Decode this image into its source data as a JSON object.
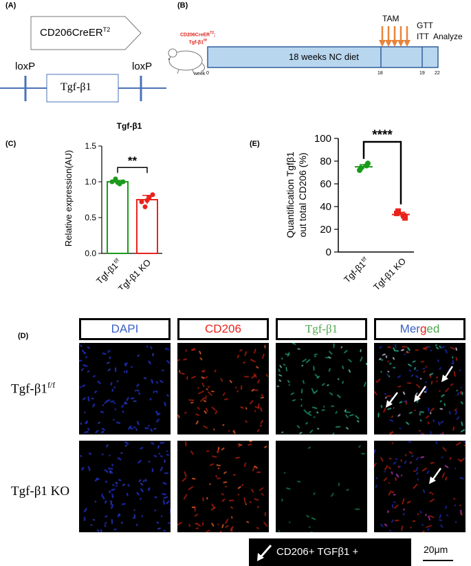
{
  "panels": {
    "A": "(A)",
    "B": "(B)",
    "C": "(C)",
    "D": "(D)",
    "E": "(E)"
  },
  "panelA": {
    "construct_label": "CD206CreER",
    "construct_sup": "T2",
    "loxp_left": "loxP",
    "loxp_right": "loxP",
    "gene": "Tgf-β1"
  },
  "panelB": {
    "mouse_label_line1": "CD206CreER",
    "mouse_label_sup": "T2",
    "mouse_label_line2": "Tgf-β1",
    "mouse_label_sup2": "f/f",
    "week": "week",
    "diet": "18 weeks NC diet",
    "tam": "TAM",
    "gtt": "GTT",
    "itt": "ITT",
    "analyze": "Analyze",
    "ticks": [
      "0",
      "18",
      "19",
      "22"
    ],
    "colors": {
      "bar": "#b9d6ef",
      "arrow": "#e8843a",
      "mouse_label": "#e0231c"
    }
  },
  "panelC": {
    "chart_data": {
      "type": "bar",
      "title": "Tgf-β1",
      "ylabel": "Relative expression(AU)",
      "categories": [
        "Tgf-β1f/f",
        "Tgf-β1 KO"
      ],
      "category_main": [
        "Tgf-β1",
        "Tgf-β1 KO"
      ],
      "category_sup": [
        "f/f",
        ""
      ],
      "values": [
        1.0,
        0.75
      ],
      "errors": [
        0.02,
        0.06
      ],
      "points": [
        [
          1.0,
          1.04,
          0.97,
          1.0,
          0.99
        ],
        [
          0.72,
          0.65,
          0.78,
          0.82,
          0.74
        ]
      ],
      "colors": [
        "#1a9a1a",
        "#e8231c"
      ],
      "ylim": [
        0,
        1.5
      ],
      "yticks": [
        "0.0",
        "0.5",
        "1.0",
        "1.5"
      ],
      "significance": "**"
    }
  },
  "panelE": {
    "chart_data": {
      "type": "scatter",
      "ylabel_line1": "Quantification Tgfβ1",
      "ylabel_line2": "out total CD206 (%)",
      "categories": [
        "Tgf-β1f/f",
        "Tgf-β1 KO"
      ],
      "category_main": [
        "Tgf-β1",
        "Tgf-β1 KO"
      ],
      "category_sup": [
        "f/f",
        ""
      ],
      "means": [
        75,
        33
      ],
      "errors": [
        2,
        2
      ],
      "points": [
        [
          72,
          78,
          76,
          74
        ],
        [
          34,
          30,
          32,
          36
        ]
      ],
      "colors": [
        "#1a9a1a",
        "#e8231c"
      ],
      "ylim": [
        0,
        100
      ],
      "yticks": [
        "0",
        "20",
        "40",
        "60",
        "80",
        "100"
      ],
      "significance": "****"
    }
  },
  "panelD": {
    "headers": [
      "DAPI",
      "CD206",
      "Tgf-β1"
    ],
    "merged": [
      "Mer",
      "g",
      "ed"
    ],
    "header_colors": [
      "#3a5fc8",
      "#e8231c",
      "#4ea84e"
    ],
    "row_main": [
      "Tgf-β1",
      "Tgf-β1 KO"
    ],
    "row_sup": [
      "f/f",
      ""
    ],
    "legend": "CD206+ TGFβ1 +",
    "scale": "20μm"
  }
}
